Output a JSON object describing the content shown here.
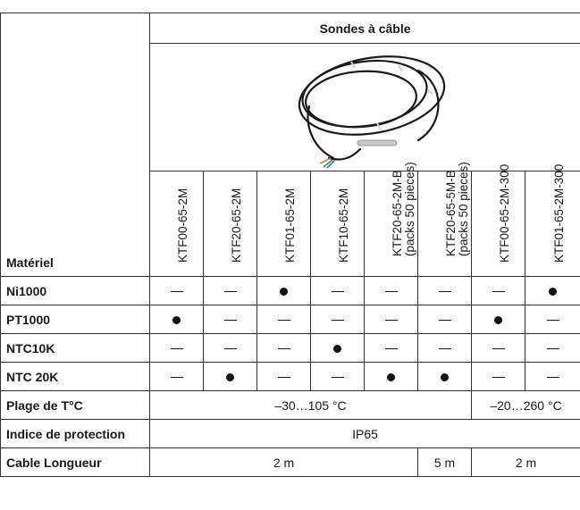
{
  "header": {
    "title": "Sondes à câble"
  },
  "row_header_label": "Matériel",
  "models": [
    {
      "lines": [
        "KTF00-65-2M"
      ]
    },
    {
      "lines": [
        "KTF20-65-2M"
      ]
    },
    {
      "lines": [
        "KTF01-65-2M"
      ]
    },
    {
      "lines": [
        "KTF10-65-2M"
      ]
    },
    {
      "lines": [
        "KTF20-65-2M-B",
        "(packs 50 pieces)"
      ]
    },
    {
      "lines": [
        "KTF20-65-5M-B",
        "(packs 50 pieces)"
      ]
    },
    {
      "lines": [
        "KTF00-65-2M-300"
      ]
    },
    {
      "lines": [
        "KTF01-65-2M-300"
      ]
    }
  ],
  "rows": [
    {
      "label": "Ni1000",
      "cells": [
        "dash",
        "dash",
        "dot",
        "dash",
        "dash",
        "dash",
        "dash",
        "dot"
      ]
    },
    {
      "label": "PT1000",
      "cells": [
        "dot",
        "dash",
        "dash",
        "dash",
        "dash",
        "dash",
        "dot",
        "dash"
      ]
    },
    {
      "label": "NTC10K",
      "cells": [
        "dash",
        "dash",
        "dash",
        "dot",
        "dash",
        "dash",
        "dash",
        "dash"
      ]
    },
    {
      "label": "NTC 20K",
      "cells": [
        "dash",
        "dot",
        "dash",
        "dash",
        "dot",
        "dot",
        "dash",
        "dash"
      ]
    }
  ],
  "temp_range": {
    "label": "Plage de T°C",
    "range_a": "–30…105 °C",
    "range_b": "–20…260 °C"
  },
  "protection": {
    "label": "Indice de protection",
    "value": "IP65"
  },
  "cable_length": {
    "label": "Cable Longueur",
    "len_a": "2 m",
    "len_b": "5 m",
    "len_c": "2 m"
  },
  "colors": {
    "border": "#333333",
    "cable": "#1a1a1a",
    "probe": "#c8c8c8"
  },
  "icons": {
    "available": "filled-dot",
    "unavailable": "dash"
  }
}
